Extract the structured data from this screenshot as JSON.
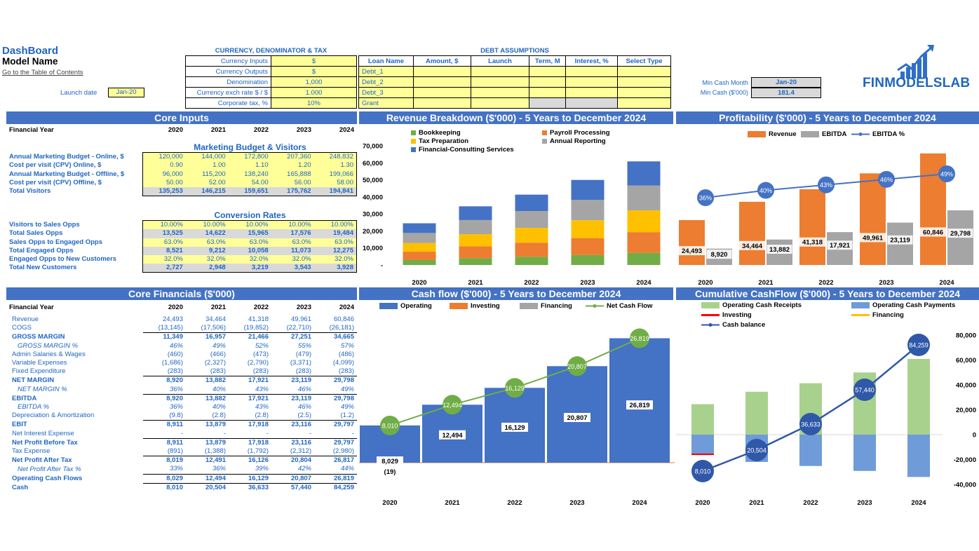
{
  "header": {
    "title": "DashBoard",
    "model_name": "Model Name",
    "toc_link": "Go to the Table of Contents",
    "launch_label": "Launch date",
    "launch_value": "Jan-20",
    "brand": "FINMODELSLAB"
  },
  "currency": {
    "title": "CURRENCY, DENOMINATOR & TAX",
    "rows": [
      {
        "label": "Currency Inputs",
        "value": "$"
      },
      {
        "label": "Currency Outputs",
        "value": "$"
      },
      {
        "label": "Denomination",
        "value": "1,000"
      },
      {
        "label": "Currency exch rate $ / $",
        "value": "1.000"
      },
      {
        "label": "Corporate tax, %",
        "value": "10%"
      }
    ]
  },
  "debt": {
    "title": "DEBT ASSUMPTIONS",
    "headers": [
      "Loan Name",
      "Amount, $",
      "Launch",
      "Term, M",
      "Interest, %",
      "Select Type"
    ],
    "rows": [
      "Debt_1",
      "Debt_2",
      "Debt_3",
      "Grant"
    ]
  },
  "mincash": {
    "month_label": "Min Cash Month",
    "month_value": "Jan-20",
    "cash_label": "Min Cash ($'000)",
    "cash_value": "181.4"
  },
  "core_inputs": {
    "title": "Core Inputs",
    "fy_label": "Financial Year",
    "years": [
      "2020",
      "2021",
      "2022",
      "2023",
      "2024"
    ],
    "mb_title": "Marketing Budget & Visitors",
    "mb_rows": [
      {
        "label": "Annual Marketing Budget - Online, $",
        "vals": [
          "120,000",
          "144,000",
          "172,800",
          "207,360",
          "248,832"
        ],
        "style": "yl"
      },
      {
        "label": "Cost per visit (CPV) Online, $",
        "vals": [
          "0.90",
          "1.00",
          "1.10",
          "1.20",
          "1.30"
        ],
        "style": "yl"
      },
      {
        "label": "Annual Marketing Budget - Offline, $",
        "vals": [
          "96,000",
          "115,200",
          "138,240",
          "165,888",
          "199,066"
        ],
        "style": "yl"
      },
      {
        "label": "Cost per visit (CPV) Offline, $",
        "vals": [
          "50.00",
          "52.00",
          "54.00",
          "56.00",
          "58.00"
        ],
        "style": "yl"
      },
      {
        "label": "Total Visitors",
        "vals": [
          "135,253",
          "146,215",
          "159,651",
          "175,762",
          "194,841"
        ],
        "style": "gy"
      }
    ],
    "cr_title": "Conversion Rates",
    "cr_rows": [
      {
        "label": "Visitors to Sales Opps",
        "vals": [
          "10.00%",
          "10.00%",
          "10.00%",
          "10.00%",
          "10.00%"
        ],
        "style": "yl"
      },
      {
        "label": "Total Sales Opps",
        "vals": [
          "13,525",
          "14,622",
          "15,965",
          "17,576",
          "19,484"
        ],
        "style": "gy"
      },
      {
        "label": "Sales Opps to Engaged Opps",
        "vals": [
          "63.0%",
          "63.0%",
          "63.0%",
          "63.0%",
          "63.0%"
        ],
        "style": "yl"
      },
      {
        "label": "Total Engaged Opps",
        "vals": [
          "8,521",
          "9,212",
          "10,058",
          "11,073",
          "12,275"
        ],
        "style": "gy"
      },
      {
        "label": "Engaged Opps to New Customers",
        "vals": [
          "32.0%",
          "32.0%",
          "32.0%",
          "32.0%",
          "32.0%"
        ],
        "style": "yl"
      },
      {
        "label": "Total New Customers",
        "vals": [
          "2,727",
          "2,948",
          "3,219",
          "3,543",
          "3,928"
        ],
        "style": "gy"
      }
    ]
  },
  "core_fin": {
    "title": "Core Financials ($'000)",
    "fy_label": "Financial Year",
    "years": [
      "2020",
      "2021",
      "2022",
      "2023",
      "2024"
    ],
    "rows": [
      {
        "label": "Revenue",
        "vals": [
          "24,493",
          "34,464",
          "41,318",
          "49,961",
          "60,846"
        ],
        "cls": "norm"
      },
      {
        "label": "COGS",
        "vals": [
          "(13,145)",
          "(17,506)",
          "(19,852)",
          "(22,710)",
          "(26,181)"
        ],
        "cls": "norm"
      },
      {
        "label": "GROSS MARGIN",
        "vals": [
          "11,349",
          "16,957",
          "21,466",
          "27,251",
          "34,665"
        ],
        "cls": "bold"
      },
      {
        "label": "GROSS MARGIN %",
        "vals": [
          "46%",
          "49%",
          "52%",
          "55%",
          "57%"
        ],
        "cls": "ital"
      },
      {
        "label": "Admin Salaries & Wages",
        "vals": [
          "(460)",
          "(466)",
          "(473)",
          "(479)",
          "(486)"
        ],
        "cls": "norm"
      },
      {
        "label": "Variable Expenses",
        "vals": [
          "(1,686)",
          "(2,327)",
          "(2,790)",
          "(3,371)",
          "(4,099)"
        ],
        "cls": "norm"
      },
      {
        "label": "Fixed Expenditure",
        "vals": [
          "(283)",
          "(283)",
          "(283)",
          "(283)",
          "(283)"
        ],
        "cls": "norm"
      },
      {
        "label": "NET MARGIN",
        "vals": [
          "8,920",
          "13,882",
          "17,921",
          "23,119",
          "29,798"
        ],
        "cls": "bold"
      },
      {
        "label": "NET MARGIN %",
        "vals": [
          "36%",
          "40%",
          "43%",
          "46%",
          "49%"
        ],
        "cls": "ital"
      },
      {
        "label": "EBITDA",
        "vals": [
          "8,920",
          "13,882",
          "17,921",
          "23,119",
          "29,798"
        ],
        "cls": "bold"
      },
      {
        "label": "EBITDA %",
        "vals": [
          "36%",
          "40%",
          "43%",
          "46%",
          "49%"
        ],
        "cls": "ital"
      },
      {
        "label": "Depreciation & Amortization",
        "vals": [
          "(9.8)",
          "(2.8)",
          "(2.8)",
          "(2.5)",
          "(1.2)"
        ],
        "cls": "norm"
      },
      {
        "label": "EBIT",
        "vals": [
          "8,911",
          "13,879",
          "17,918",
          "23,116",
          "29,797"
        ],
        "cls": "bold"
      },
      {
        "label": "Net Interest Expense",
        "vals": [
          "-",
          "-",
          "-",
          "-",
          "-"
        ],
        "cls": "norm"
      },
      {
        "label": "Net Profit Before Tax",
        "vals": [
          "8,911",
          "13,879",
          "17,918",
          "23,116",
          "29,797"
        ],
        "cls": "bold"
      },
      {
        "label": "Tax Expense",
        "vals": [
          "(891)",
          "(1,388)",
          "(1,792)",
          "(2,312)",
          "(2,980)"
        ],
        "cls": "norm"
      },
      {
        "label": "Net Profit After Tax",
        "vals": [
          "8,019",
          "12,491",
          "16,126",
          "20,804",
          "26,817"
        ],
        "cls": "bold"
      },
      {
        "label": "Net Profit After Tax %",
        "vals": [
          "33%",
          "36%",
          "39%",
          "42%",
          "44%"
        ],
        "cls": "ital"
      },
      {
        "label": "Operating Cash Flows",
        "vals": [
          "8,029",
          "12,494",
          "16,129",
          "20,807",
          "26,819"
        ],
        "cls": "bold"
      },
      {
        "label": "Cash",
        "vals": [
          "8,010",
          "20,504",
          "36,633",
          "57,440",
          "84,259"
        ],
        "cls": "bold"
      }
    ]
  },
  "chart_data": [
    {
      "type": "bar",
      "title": "Revenue Breakdown ($'000) - 5 Years to December 2024",
      "stacked": true,
      "categories": [
        "2020",
        "2021",
        "2022",
        "2023",
        "2024"
      ],
      "ylim": [
        0,
        70000
      ],
      "yticks": [
        "-",
        "10,000",
        "20,000",
        "30,000",
        "40,000",
        "50,000",
        "60,000",
        "70,000"
      ],
      "series": [
        {
          "name": "Bookkeeping",
          "color": "#70ad47",
          "values": [
            2900,
            4000,
            4800,
            5800,
            7100
          ]
        },
        {
          "name": "Payroll Processing",
          "color": "#ed7d31",
          "values": [
            4900,
            6900,
            8300,
            10000,
            12200
          ]
        },
        {
          "name": "Tax Preparation",
          "color": "#ffc000",
          "values": [
            5100,
            7200,
            8700,
            10500,
            12800
          ]
        },
        {
          "name": "Annual Reporting",
          "color": "#a5a5a5",
          "values": [
            5900,
            8300,
            9900,
            12000,
            14600
          ]
        },
        {
          "name": "Financial-Consulting Services",
          "color": "#4472c4",
          "values": [
            5693,
            8064,
            9618,
            11661,
            14146
          ]
        }
      ]
    },
    {
      "type": "bar",
      "title": "Profitability ($'000) - 5 Years to December 2024",
      "categories": [
        "2020",
        "2021",
        "2022",
        "2023",
        "2024"
      ],
      "series": [
        {
          "name": "Revenue",
          "color": "#ed7d31",
          "values": [
            24493,
            34464,
            41318,
            49961,
            60846
          ],
          "labels": [
            "24,493",
            "34,464",
            "41,318",
            "49,961",
            "60,846"
          ]
        },
        {
          "name": "EBITDA",
          "color": "#a5a5a5",
          "values": [
            8920,
            13882,
            17921,
            23119,
            29798
          ],
          "labels": [
            "8,920",
            "13,882",
            "17,921",
            "23,119",
            "29,798"
          ]
        },
        {
          "name": "EBITDA %",
          "color": "#4472c4",
          "type": "line",
          "values": [
            36,
            40,
            43,
            46,
            49
          ],
          "labels": [
            "36%",
            "40%",
            "43%",
            "46%",
            "49%"
          ]
        }
      ]
    },
    {
      "type": "bar",
      "title": "Cash flow ($'000) - 5 Years to December 2024",
      "categories": [
        "2020",
        "2021",
        "2022",
        "2023",
        "2024"
      ],
      "series": [
        {
          "name": "Operating",
          "color": "#4472c4",
          "values": [
            8029,
            12494,
            16129,
            20807,
            26819
          ],
          "labels": [
            "8,029",
            "12,494",
            "16,129",
            "20,807",
            "26,819"
          ]
        },
        {
          "name": "Investing",
          "color": "#ed7d31",
          "values": [
            -19,
            0,
            0,
            0,
            0
          ],
          "labels": [
            "(19)",
            "",
            "",
            "",
            ""
          ]
        },
        {
          "name": "Financing",
          "color": "#a5a5a5",
          "values": [
            0,
            0,
            0,
            0,
            0
          ]
        },
        {
          "name": "Net Cash Flow",
          "color": "#70ad47",
          "type": "line",
          "values": [
            8010,
            12494,
            16129,
            20807,
            26819
          ],
          "labels": [
            "8,010",
            "12,494",
            "16,129",
            "20,807",
            "26,819"
          ]
        }
      ]
    },
    {
      "type": "bar",
      "title": "Cumulative CashFlow ($'000) - 5 Years to December 2024",
      "categories": [
        "2020",
        "2021",
        "2022",
        "2023",
        "2024"
      ],
      "ylim": [
        -40000,
        80000
      ],
      "yticks": [
        "-40,000",
        "-20,000",
        "0",
        "20,000",
        "40,000",
        "60,000",
        "80,000"
      ],
      "series": [
        {
          "name": "Operating Cash Receipts",
          "color": "#a9d18e",
          "values": [
            24493,
            34464,
            41318,
            49961,
            60846
          ]
        },
        {
          "name": "Operating Cash Payments",
          "color": "#6f9bd8",
          "values": [
            -16464,
            -21970,
            -25189,
            -29154,
            -34027
          ]
        },
        {
          "name": "Investing",
          "color": "#ff0000",
          "values": [
            -19,
            0,
            0,
            0,
            0
          ]
        },
        {
          "name": "Financing",
          "color": "#ffc000",
          "values": [
            0,
            0,
            0,
            0,
            0
          ]
        },
        {
          "name": "Cash balance",
          "color": "#2f58a8",
          "type": "line",
          "values": [
            8010,
            20504,
            36633,
            57440,
            84259
          ],
          "labels": [
            "8,010",
            "20,504",
            "36,633",
            "57,440",
            "84,259"
          ]
        }
      ]
    }
  ]
}
